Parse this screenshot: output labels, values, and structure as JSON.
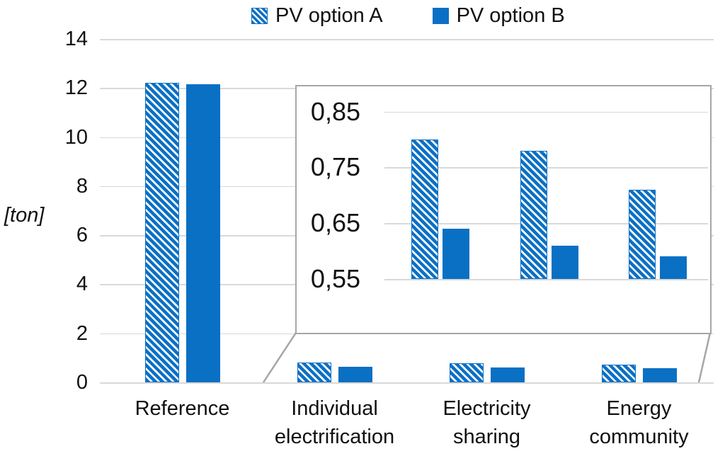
{
  "colors": {
    "series_blue": "#0a70c4",
    "gridline": "#d9d9d9",
    "inset_border": "#a6a6a6",
    "connector": "#a6a6a6",
    "text": "#111111"
  },
  "legend": {
    "items": [
      {
        "label": "PV option A",
        "swatch": "hatched"
      },
      {
        "label": "PV option B",
        "swatch": "solid"
      }
    ]
  },
  "chart_data": {
    "type": "bar",
    "title": "",
    "ylabel": "[ton]",
    "xlabel": "",
    "ylim": [
      0,
      14
    ],
    "yticks": [
      0,
      2,
      4,
      6,
      8,
      10,
      12,
      14
    ],
    "grid": true,
    "legend_position": "top",
    "categories": [
      "Reference",
      "Individual\nelectrification",
      "Electricity\nsharing",
      "Energy\ncommunity"
    ],
    "series": [
      {
        "name": "PV option A",
        "style": "hatched",
        "values": [
          12.2,
          0.8,
          0.78,
          0.71
        ]
      },
      {
        "name": "PV option B",
        "style": "solid",
        "values": [
          12.15,
          0.64,
          0.61,
          0.59
        ]
      }
    ],
    "inset": {
      "description": "zoomed view of the three small PV scenarios",
      "ylim": [
        0.45,
        0.9
      ],
      "yticks": [
        0.85,
        0.75,
        0.65,
        0.55
      ],
      "ytick_labels": [
        "0,85",
        "0,75",
        "0,65",
        "0,55"
      ],
      "categories": [
        "Individual electrification",
        "Electricity sharing",
        "Energy community"
      ],
      "series": [
        {
          "name": "PV option A",
          "style": "hatched",
          "values": [
            0.8,
            0.78,
            0.71
          ]
        },
        {
          "name": "PV option B",
          "style": "solid",
          "values": [
            0.64,
            0.61,
            0.59
          ]
        }
      ]
    }
  }
}
